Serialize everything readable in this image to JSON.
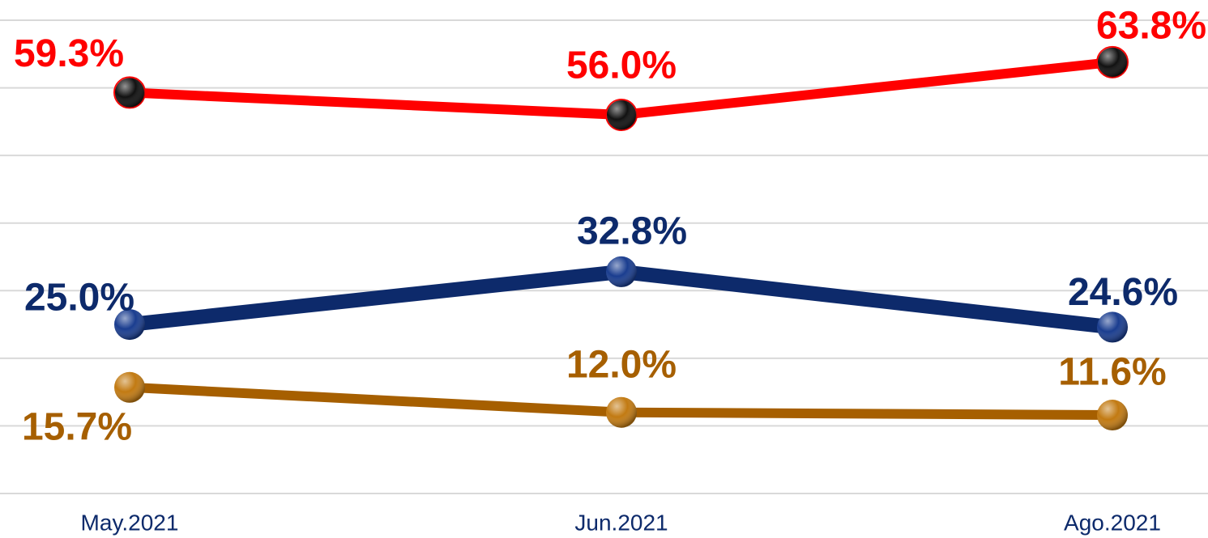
{
  "chart_data": {
    "type": "line",
    "categories": [
      "May.2021",
      "Jun.2021",
      "Ago.2021"
    ],
    "series": [
      {
        "color": "#ff0000",
        "marker_color": "#111111",
        "values": [
          59.3,
          56.0,
          63.8
        ],
        "value_labels": [
          "59.3%",
          "56.0%",
          "63.8%"
        ]
      },
      {
        "color": "#0d2a6b",
        "marker_color": "#1a3d8f",
        "values": [
          25.0,
          32.8,
          24.6
        ],
        "value_labels": [
          "25.0%",
          "32.8%",
          "24.6%"
        ]
      },
      {
        "color": "#a65f00",
        "marker_color": "#c27a12",
        "values": [
          15.7,
          12.0,
          11.6
        ],
        "value_labels": [
          "15.7%",
          "12.0%",
          "11.6%"
        ]
      }
    ],
    "ylim": [
      0,
      70
    ],
    "yticks": [
      0,
      10,
      20,
      30,
      40,
      50,
      60,
      70
    ],
    "grid": true
  }
}
